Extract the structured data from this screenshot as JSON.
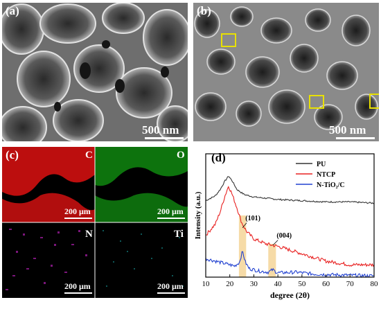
{
  "panel_a": {
    "label": "(a)",
    "scale": "500 nm"
  },
  "panel_b": {
    "label": "(b)",
    "scale": "500 nm"
  },
  "panel_c": {
    "label": "(c)",
    "maps": [
      {
        "element": "C",
        "scale": "200 μm",
        "color": "#e01010"
      },
      {
        "element": "O",
        "scale": "200 μm",
        "color": "#18b018"
      },
      {
        "element": "N",
        "scale": "200 μm",
        "color": "#c020c0"
      },
      {
        "element": "Ti",
        "scale": "200 μm",
        "color": "#20b0b0"
      }
    ]
  },
  "panel_d": {
    "label": "(d)",
    "peak_labels": [
      "(101)",
      "(004)"
    ]
  },
  "chart_data": {
    "type": "line",
    "xlabel": "degree (2θ)",
    "ylabel": "Intensity (a.u.)",
    "xlim": [
      10,
      80
    ],
    "xticks": [
      10,
      20,
      30,
      40,
      50,
      60,
      70,
      80
    ],
    "yticks": false,
    "legend_position": "top-right",
    "series": [
      {
        "name": "PU",
        "color": "#333333",
        "x": [
          10,
          14,
          16,
          18,
          19.5,
          21,
          23,
          26,
          30,
          35,
          40,
          50,
          60,
          70,
          80
        ],
        "y": [
          0.62,
          0.66,
          0.71,
          0.78,
          0.82,
          0.78,
          0.71,
          0.67,
          0.65,
          0.64,
          0.63,
          0.62,
          0.61,
          0.61,
          0.6
        ]
      },
      {
        "name": "NTCP",
        "color": "#e82020",
        "x": [
          10,
          14,
          16,
          18,
          19.5,
          21,
          23,
          25,
          27,
          30,
          35,
          40,
          45,
          50,
          55,
          60,
          70,
          80
        ],
        "y": [
          0.34,
          0.43,
          0.53,
          0.66,
          0.74,
          0.67,
          0.56,
          0.44,
          0.37,
          0.31,
          0.27,
          0.25,
          0.22,
          0.19,
          0.16,
          0.13,
          0.1,
          0.1
        ]
      },
      {
        "name": "N-TiO₂/C",
        "color": "#2040d0",
        "x": [
          10,
          14,
          18,
          22,
          24,
          25.3,
          26.5,
          28,
          32,
          36,
          37.8,
          40,
          48,
          55,
          62,
          70,
          80
        ],
        "y": [
          0.15,
          0.13,
          0.11,
          0.09,
          0.12,
          0.21,
          0.12,
          0.07,
          0.05,
          0.04,
          0.06,
          0.035,
          0.04,
          0.025,
          0.02,
          0.015,
          0.01
        ]
      }
    ],
    "highlights": [
      {
        "label": "(101)",
        "x_range": [
          23.8,
          26.8
        ]
      },
      {
        "label": "(004)",
        "x_range": [
          36.0,
          39.2
        ]
      }
    ]
  }
}
